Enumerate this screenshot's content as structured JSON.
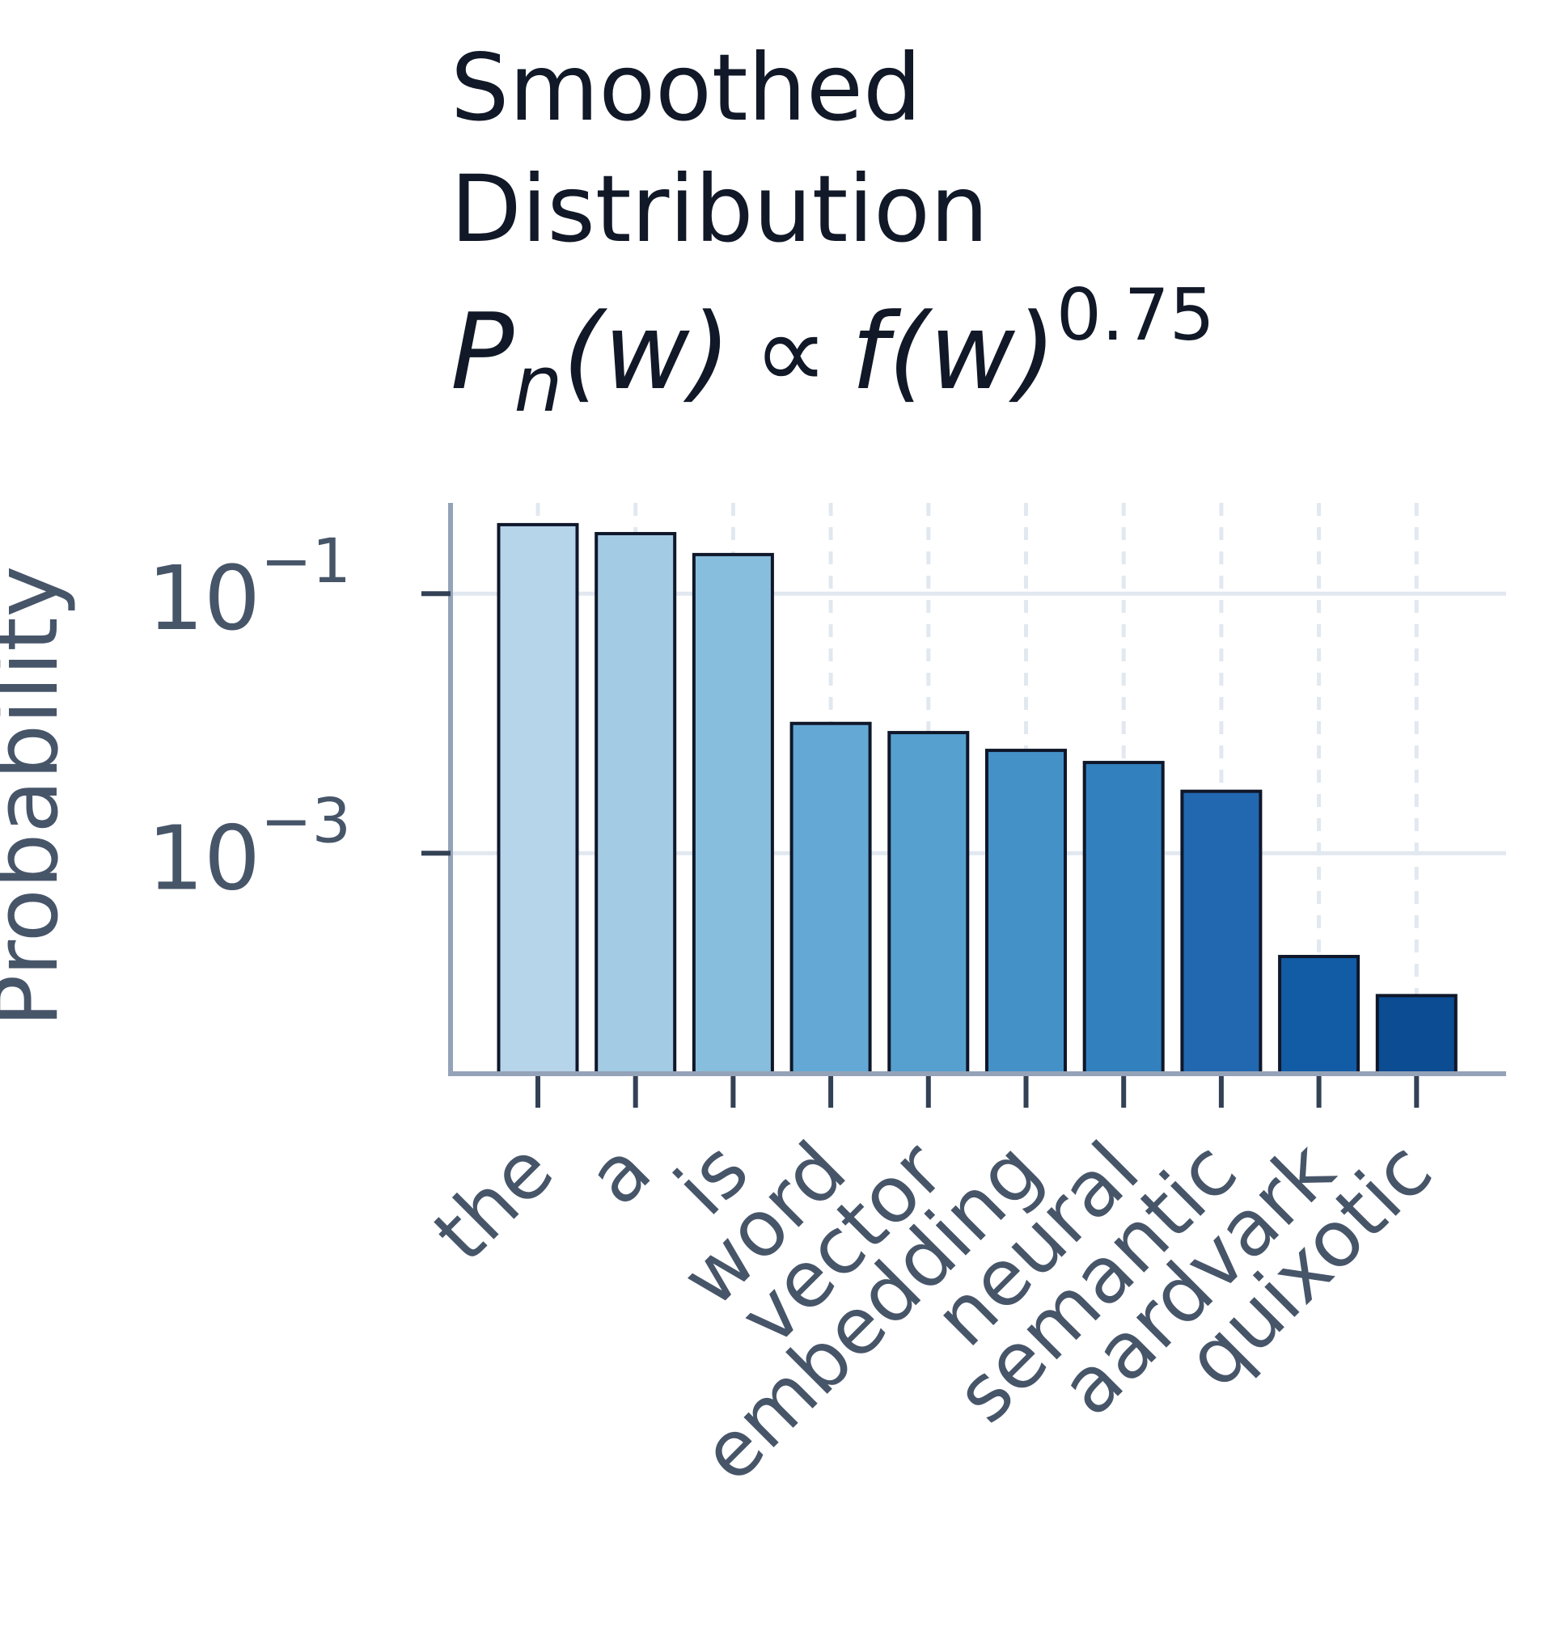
{
  "chart_data": {
    "type": "bar",
    "title_lines": [
      "Smoothed",
      "Distribution"
    ],
    "formula": {
      "p": "P",
      "sub": "n",
      "lhs_arg": "(w)",
      "propto": "∝",
      "f": "f",
      "rhs_arg": "(w)",
      "exponent": "0.75"
    },
    "xlabel": "",
    "ylabel": "Probability",
    "yscale": "log",
    "ylim": [
      2e-05,
      0.5
    ],
    "yticks": [
      {
        "value": 0.1,
        "base": "10",
        "exp": "−1"
      },
      {
        "value": 0.001,
        "base": "10",
        "exp": "−3"
      }
    ],
    "categories": [
      "the",
      "a",
      "is",
      "word",
      "vector",
      "embedding",
      "neural",
      "semantic",
      "aardvark",
      "quixotic"
    ],
    "values": [
      0.34,
      0.29,
      0.2,
      0.01,
      0.0085,
      0.0062,
      0.005,
      0.003,
      0.00016,
      8e-05
    ],
    "colors": [
      "#b6d4ea",
      "#a3cbe4",
      "#88bedd",
      "#64a9d5",
      "#56a0cf",
      "#4491c8",
      "#3380be",
      "#2168b0",
      "#125ca6",
      "#0b4c92"
    ],
    "grid": true,
    "legend": "none"
  }
}
